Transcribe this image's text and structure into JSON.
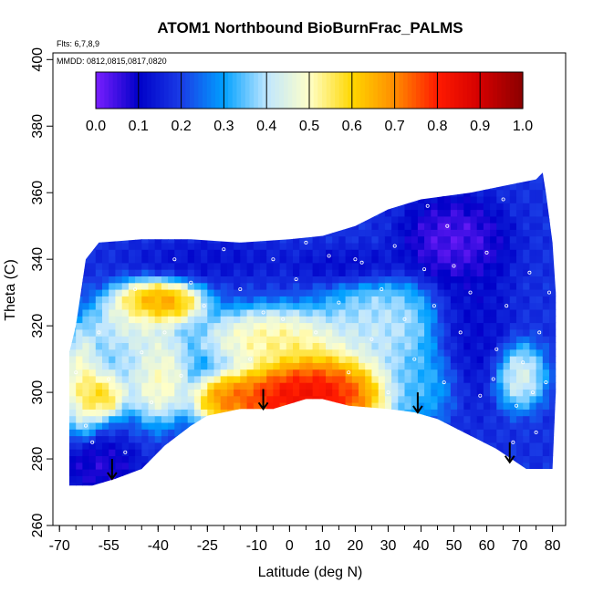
{
  "chart_data": {
    "type": "heatmap",
    "title": "ATOM1 Northbound BioBurnFrac_PALMS",
    "flights_note": "Flts: 6,7,8,9",
    "dates_note": "MMDD: 0812,0815,0817,0820",
    "xlabel": "Latitude (deg N)",
    "ylabel": "Theta (C)",
    "xlim": [
      -72,
      84
    ],
    "ylim": [
      260,
      402
    ],
    "x_ticks": [
      -70,
      -55,
      -40,
      -25,
      -10,
      0,
      10,
      20,
      30,
      40,
      50,
      60,
      70,
      80
    ],
    "x_tick_labels": [
      "-70",
      "-55",
      "-40",
      "-25",
      "-10",
      "0",
      "10",
      "20",
      "30",
      "40",
      "50",
      "60",
      "70",
      "80"
    ],
    "x_minor_step": 5,
    "y_ticks": [
      260,
      280,
      300,
      320,
      340,
      360,
      380,
      400
    ],
    "y_tick_labels": [
      "260",
      "280",
      "300",
      "320",
      "340",
      "360",
      "380",
      "400"
    ],
    "colorbar": {
      "min": 0.0,
      "max": 1.0,
      "ticks": [
        0.0,
        0.1,
        0.2,
        0.3,
        0.4,
        0.5,
        0.6,
        0.7,
        0.8,
        0.9,
        1.0
      ],
      "tick_labels": [
        "0.0",
        "0.1",
        "0.2",
        "0.3",
        "0.4",
        "0.5",
        "0.6",
        "0.7",
        "0.8",
        "0.9",
        "1.0"
      ],
      "colors": [
        "#7a1fff",
        "#0000c8",
        "#1a3ce6",
        "#00a0ff",
        "#bfe6ff",
        "#ffffc8",
        "#ffd700",
        "#ff8c00",
        "#ff1a00",
        "#d40000",
        "#8b0000"
      ]
    },
    "domain_lower": [
      [
        -67,
        272
      ],
      [
        -60,
        272
      ],
      [
        -53,
        274
      ],
      [
        -45,
        277
      ],
      [
        -38,
        284
      ],
      [
        -30,
        290
      ],
      [
        -25,
        293
      ],
      [
        -15,
        295
      ],
      [
        -5,
        295
      ],
      [
        5,
        298
      ],
      [
        10,
        298
      ],
      [
        18,
        296
      ],
      [
        30,
        295
      ],
      [
        38,
        294
      ],
      [
        45,
        292
      ],
      [
        55,
        287
      ],
      [
        63,
        283
      ],
      [
        72,
        277
      ],
      [
        80,
        277
      ]
    ],
    "domain_upper": [
      [
        -67,
        312
      ],
      [
        -65,
        320
      ],
      [
        -62,
        340
      ],
      [
        -58,
        345
      ],
      [
        -45,
        346
      ],
      [
        -30,
        346
      ],
      [
        -15,
        345
      ],
      [
        0,
        346
      ],
      [
        10,
        347
      ],
      [
        20,
        350
      ],
      [
        30,
        355
      ],
      [
        40,
        358
      ],
      [
        55,
        360
      ],
      [
        65,
        362
      ],
      [
        75,
        364
      ],
      [
        77,
        366
      ],
      [
        78,
        360
      ],
      [
        80,
        345
      ],
      [
        81,
        330
      ],
      [
        81,
        300
      ],
      [
        80,
        277
      ]
    ],
    "features": [
      {
        "x": 10,
        "y": 300,
        "sx": 11,
        "sy": 7,
        "value": 0.95
      },
      {
        "x": -2,
        "y": 298,
        "sx": 9,
        "sy": 5,
        "value": 0.9
      },
      {
        "x": -18,
        "y": 298,
        "sx": 6,
        "sy": 4,
        "value": 0.8
      },
      {
        "x": -5,
        "y": 316,
        "sx": 12,
        "sy": 5,
        "value": 0.6
      },
      {
        "x": -40,
        "y": 327,
        "sx": 7,
        "sy": 3.5,
        "value": 0.8
      },
      {
        "x": -48,
        "y": 320,
        "sx": 7,
        "sy": 5,
        "value": 0.5
      },
      {
        "x": -40,
        "y": 305,
        "sx": 5,
        "sy": 7,
        "value": 0.6
      },
      {
        "x": -57,
        "y": 300,
        "sx": 4,
        "sy": 4,
        "value": 0.7
      },
      {
        "x": -63,
        "y": 304,
        "sx": 3,
        "sy": 8,
        "value": 0.6
      },
      {
        "x": -50,
        "y": 309,
        "sx": 8,
        "sy": 5,
        "value": 0.4
      },
      {
        "x": 28,
        "y": 320,
        "sx": 10,
        "sy": 8,
        "value": 0.45
      },
      {
        "x": 40,
        "y": 303,
        "sx": 6,
        "sy": 6,
        "value": 0.35
      },
      {
        "x": 70,
        "y": 305,
        "sx": 4,
        "sy": 5,
        "value": 0.5
      },
      {
        "x": 50,
        "y": 345,
        "sx": 8,
        "sy": 7,
        "value": 0.0
      },
      {
        "x": 20,
        "y": 338,
        "sx": 10,
        "sy": 3,
        "value": 0.1
      },
      {
        "x": -58,
        "y": 278,
        "sx": 6,
        "sy": 4,
        "value": 0.05
      },
      {
        "x": 55,
        "y": 320,
        "sx": 6,
        "sy": 12,
        "value": 0.1
      },
      {
        "x": -25,
        "y": 340,
        "sx": 12,
        "sy": 3,
        "value": 0.12
      }
    ],
    "arrows": [
      {
        "lat": -54,
        "theta_top": 280,
        "theta_tip": 274
      },
      {
        "lat": -8,
        "theta_top": 301,
        "theta_tip": 295
      },
      {
        "lat": 39,
        "theta_top": 300,
        "theta_tip": 294
      },
      {
        "lat": 67,
        "theta_top": 285,
        "theta_tip": 279
      }
    ],
    "sample_points": [
      [
        -65,
        306
      ],
      [
        -62,
        290
      ],
      [
        -58,
        318
      ],
      [
        -55,
        304
      ],
      [
        -50,
        282
      ],
      [
        -47,
        331
      ],
      [
        -45,
        312
      ],
      [
        -42,
        297
      ],
      [
        -38,
        318
      ],
      [
        -35,
        340
      ],
      [
        -30,
        333
      ],
      [
        -26,
        326
      ],
      [
        -20,
        343
      ],
      [
        -15,
        331
      ],
      [
        -12,
        310
      ],
      [
        -8,
        324
      ],
      [
        -5,
        340
      ],
      [
        -2,
        322
      ],
      [
        2,
        334
      ],
      [
        5,
        345
      ],
      [
        8,
        318
      ],
      [
        12,
        341
      ],
      [
        15,
        327
      ],
      [
        18,
        306
      ],
      [
        22,
        339
      ],
      [
        25,
        316
      ],
      [
        28,
        331
      ],
      [
        32,
        344
      ],
      [
        35,
        322
      ],
      [
        38,
        310
      ],
      [
        41,
        337
      ],
      [
        44,
        326
      ],
      [
        47,
        303
      ],
      [
        50,
        338
      ],
      [
        52,
        318
      ],
      [
        55,
        330
      ],
      [
        58,
        299
      ],
      [
        60,
        342
      ],
      [
        63,
        313
      ],
      [
        66,
        326
      ],
      [
        69,
        296
      ],
      [
        71,
        309
      ],
      [
        73,
        336
      ],
      [
        75,
        288
      ],
      [
        76,
        318
      ],
      [
        78,
        303
      ],
      [
        79,
        330
      ],
      [
        74,
        300
      ],
      [
        68,
        285
      ],
      [
        62,
        304
      ],
      [
        30,
        300
      ],
      [
        20,
        340
      ],
      [
        -33,
        305
      ],
      [
        -60,
        285
      ],
      [
        -28,
        347
      ],
      [
        48,
        350
      ],
      [
        65,
        358
      ],
      [
        42,
        356
      ]
    ]
  }
}
